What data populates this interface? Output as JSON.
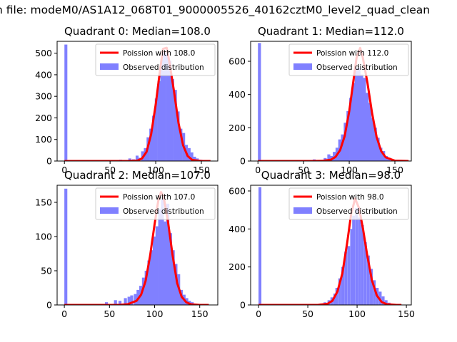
{
  "figure": {
    "suptitle": "n file: modeM0/AS1A12_068T01_9000005526_40162cztM0_level2_quad_clean"
  },
  "colors": {
    "hist_fill": "#8080ff",
    "poisson_line": "#ff0000",
    "axes": "#000000",
    "background": "#ffffff"
  },
  "chart_data": [
    {
      "type": "bar",
      "title": "Quadrant 0: Median=108.0",
      "xlabel": "",
      "ylabel": "",
      "xlim": [
        -8,
        168
      ],
      "ylim": [
        0,
        555
      ],
      "xticks": [
        0,
        50,
        100,
        150
      ],
      "yticks": [
        0,
        100,
        200,
        300,
        400,
        500
      ],
      "legend": {
        "placement": "top-right",
        "entries": [
          "Poission with 108.0",
          "Observed distribution"
        ]
      },
      "series": [
        {
          "name": "Poission with 108.0",
          "kind": "line",
          "lambda": 108.0,
          "x": [
            0,
            60,
            70,
            80,
            85,
            90,
            95,
            100,
            105,
            108,
            112,
            115,
            120,
            125,
            130,
            135,
            140,
            150,
            160
          ],
          "y": [
            0,
            0,
            0,
            2,
            12,
            43,
            125,
            263,
            431,
            520,
            525,
            460,
            325,
            176,
            73,
            23,
            5,
            0,
            0
          ]
        },
        {
          "name": "Observed distribution",
          "kind": "hist",
          "bin_width": 3.2,
          "bins": [
            [
              0,
              540
            ],
            [
              60,
              6
            ],
            [
              65,
              3
            ],
            [
              70,
              12
            ],
            [
              74,
              8
            ],
            [
              78,
              25
            ],
            [
              80,
              15
            ],
            [
              84,
              45
            ],
            [
              87,
              60
            ],
            [
              90,
              110
            ],
            [
              93,
              150
            ],
            [
              96,
              210
            ],
            [
              99,
              290
            ],
            [
              102,
              370
            ],
            [
              105,
              470
            ],
            [
              108,
              510
            ],
            [
              111,
              500
            ],
            [
              114,
              465
            ],
            [
              117,
              380
            ],
            [
              120,
              330
            ],
            [
              123,
              230
            ],
            [
              126,
              150
            ],
            [
              129,
              130
            ],
            [
              132,
              75
            ],
            [
              135,
              60
            ],
            [
              138,
              40
            ],
            [
              141,
              20
            ],
            [
              144,
              12
            ],
            [
              148,
              6
            ],
            [
              152,
              3
            ]
          ]
        }
      ]
    },
    {
      "type": "bar",
      "title": "Quadrant 1: Median=112.0",
      "xlabel": "",
      "ylabel": "",
      "xlim": [
        -8,
        168
      ],
      "ylim": [
        0,
        720
      ],
      "xticks": [
        0,
        50,
        100,
        150
      ],
      "yticks": [
        0,
        200,
        400,
        600
      ],
      "legend": {
        "placement": "top-right",
        "entries": [
          "Poission with 112.0",
          "Observed distribution"
        ]
      },
      "series": [
        {
          "name": "Poission with 112.0",
          "kind": "line",
          "lambda": 112.0,
          "x": [
            0,
            60,
            70,
            80,
            85,
            90,
            95,
            100,
            105,
            108,
            112,
            115,
            120,
            125,
            130,
            135,
            140,
            150,
            165
          ],
          "y": [
            0,
            0,
            1,
            8,
            25,
            65,
            150,
            300,
            500,
            620,
            680,
            620,
            470,
            290,
            145,
            60,
            22,
            2,
            0
          ]
        },
        {
          "name": "Observed distribution",
          "kind": "hist",
          "bin_width": 3.3,
          "bins": [
            [
              0,
              710
            ],
            [
              60,
              10
            ],
            [
              66,
              6
            ],
            [
              72,
              18
            ],
            [
              76,
              40
            ],
            [
              79,
              30
            ],
            [
              82,
              55
            ],
            [
              85,
              80
            ],
            [
              88,
              130
            ],
            [
              91,
              160
            ],
            [
              94,
              230
            ],
            [
              97,
              300
            ],
            [
              100,
              380
            ],
            [
              103,
              470
            ],
            [
              106,
              560
            ],
            [
              109,
              560
            ],
            [
              112,
              520
            ],
            [
              115,
              500
            ],
            [
              118,
              410
            ],
            [
              121,
              350
            ],
            [
              124,
              260
            ],
            [
              127,
              200
            ],
            [
              130,
              140
            ],
            [
              133,
              80
            ],
            [
              136,
              60
            ],
            [
              139,
              30
            ],
            [
              142,
              20
            ],
            [
              146,
              8
            ]
          ]
        }
      ]
    },
    {
      "type": "bar",
      "title": "Quadrant 2: Median=107.0",
      "xlabel": "",
      "ylabel": "",
      "xlim": [
        -8,
        170
      ],
      "ylim": [
        0,
        175
      ],
      "xticks": [
        0,
        50,
        100,
        150
      ],
      "yticks": [
        0,
        50,
        100,
        150
      ],
      "legend": {
        "placement": "top-right",
        "entries": [
          "Poission with 107.0",
          "Observed distribution"
        ]
      },
      "series": [
        {
          "name": "Poission with 107.0",
          "kind": "line",
          "lambda": 107.0,
          "x": [
            0,
            50,
            60,
            70,
            80,
            85,
            90,
            95,
            100,
            104,
            107,
            110,
            115,
            120,
            125,
            130,
            135,
            140,
            150,
            160
          ],
          "y": [
            0,
            0,
            0,
            1,
            6,
            15,
            35,
            72,
            118,
            152,
            165,
            158,
            120,
            72,
            32,
            12,
            4,
            1,
            0,
            0
          ]
        },
        {
          "name": "Observed distribution",
          "kind": "hist",
          "bin_width": 3.3,
          "bins": [
            [
              0,
              170
            ],
            [
              45,
              4
            ],
            [
              55,
              7
            ],
            [
              60,
              6
            ],
            [
              66,
              10
            ],
            [
              70,
              12
            ],
            [
              73,
              14
            ],
            [
              77,
              16
            ],
            [
              80,
              22
            ],
            [
              83,
              28
            ],
            [
              86,
              40
            ],
            [
              89,
              50
            ],
            [
              92,
              65
            ],
            [
              95,
              80
            ],
            [
              98,
              100
            ],
            [
              101,
              115
            ],
            [
              104,
              140
            ],
            [
              107,
              155
            ],
            [
              110,
              122
            ],
            [
              113,
              148
            ],
            [
              116,
              105
            ],
            [
              119,
              80
            ],
            [
              122,
              60
            ],
            [
              125,
              45
            ],
            [
              128,
              22
            ],
            [
              131,
              15
            ],
            [
              134,
              10
            ],
            [
              137,
              6
            ],
            [
              140,
              4
            ]
          ]
        }
      ]
    },
    {
      "type": "bar",
      "title": "Quadrant 3: Median=98.0",
      "xlabel": "",
      "ylabel": "",
      "xlim": [
        -8,
        155
      ],
      "ylim": [
        0,
        630
      ],
      "xticks": [
        0,
        50,
        100,
        150
      ],
      "yticks": [
        0,
        200,
        400,
        600
      ],
      "legend": {
        "placement": "top-right",
        "entries": [
          "Poission with 98.0",
          "Observed distribution"
        ]
      },
      "series": [
        {
          "name": "Poission with 98.0",
          "kind": "line",
          "lambda": 98.0,
          "x": [
            0,
            50,
            60,
            70,
            75,
            80,
            85,
            90,
            94,
            98,
            102,
            106,
            110,
            115,
            120,
            125,
            130,
            140,
            145
          ],
          "y": [
            0,
            0,
            0,
            6,
            22,
            70,
            165,
            330,
            480,
            560,
            510,
            400,
            270,
            130,
            50,
            15,
            4,
            0,
            0
          ]
        },
        {
          "name": "Observed distribution",
          "kind": "hist",
          "bin_width": 2.9,
          "bins": [
            [
              0,
              620
            ],
            [
              55,
              5
            ],
            [
              62,
              8
            ],
            [
              66,
              14
            ],
            [
              70,
              25
            ],
            [
              73,
              40
            ],
            [
              76,
              60
            ],
            [
              78,
              90
            ],
            [
              81,
              140
            ],
            [
              84,
              200
            ],
            [
              87,
              280
            ],
            [
              90,
              310
            ],
            [
              93,
              400
            ],
            [
              95,
              470
            ],
            [
              98,
              510
            ],
            [
              101,
              460
            ],
            [
              104,
              420
            ],
            [
              107,
              330
            ],
            [
              110,
              260
            ],
            [
              113,
              190
            ],
            [
              116,
              130
            ],
            [
              119,
              90
            ],
            [
              122,
              70
            ],
            [
              125,
              45
            ],
            [
              128,
              25
            ],
            [
              131,
              12
            ]
          ]
        }
      ]
    }
  ]
}
